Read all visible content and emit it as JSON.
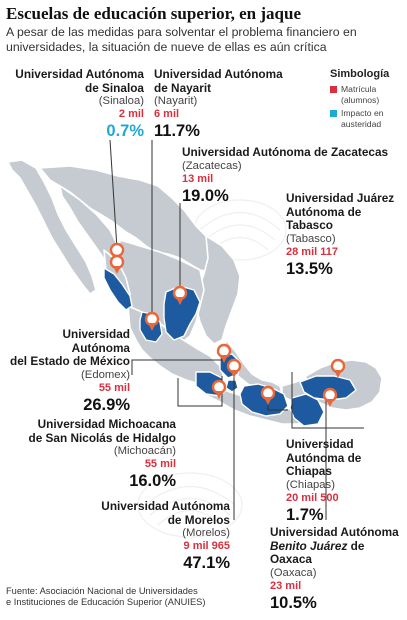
{
  "header": {
    "title": "Escuelas de educación superior, en jaque",
    "subtitle": "A pesar de las medidas para solventar el problema financiero en universidades, la situación de nueve de ellas es aún crítica"
  },
  "legend": {
    "title": "Simbología",
    "items": [
      {
        "label": "Matrícula (alumnos)",
        "color": "#d8303e"
      },
      {
        "label": "Impacto en austeridad",
        "color": "#1fa7d8"
      }
    ]
  },
  "universities": [
    {
      "id": "sinaloa",
      "name1": "Universidad Autónoma",
      "name2": "de Sinaloa",
      "state": "(Sinaloa)",
      "enrollment": "2 mil",
      "impact": "0.7%"
    },
    {
      "id": "nayarit",
      "name1": "Universidad Autónoma",
      "name2": "de Nayarit",
      "state": "(Nayarit)",
      "enrollment": "6 mil",
      "impact": "11.7%"
    },
    {
      "id": "zacatecas",
      "name1": "Universidad Autónoma de Zacatecas",
      "state": "(Zacatecas)",
      "enrollment": "13 mil",
      "impact": "19.0%"
    },
    {
      "id": "tabasco",
      "name1": "Universidad Juárez",
      "name2": "Autónoma de",
      "name3": "Tabasco",
      "state": "(Tabasco)",
      "enrollment": "28 mil 117",
      "impact": "13.5%"
    },
    {
      "id": "edomex",
      "name1": "Universidad Autónoma",
      "name2": "del Estado de México",
      "state": "(Edomex)",
      "enrollment": "55 mil",
      "impact": "26.9%"
    },
    {
      "id": "michoacan",
      "name1": "Universidad Michoacana",
      "name2": "de San Nicolás de Hidalgo",
      "state": "(Michoacán)",
      "enrollment": "55 mil",
      "impact": "16.0%"
    },
    {
      "id": "chiapas",
      "name1": "Universidad",
      "name2": "Autónoma de Chiapas",
      "state": "(Chiapas)",
      "enrollment": "20 mil 500",
      "impact": "1.7%"
    },
    {
      "id": "morelos",
      "name1": "Universidad Autónoma",
      "name2": "de Morelos",
      "state": "(Morelos)",
      "enrollment": "9 mil 965",
      "impact": "47.1%"
    },
    {
      "id": "oaxaca",
      "name1": "Universidad Autónoma",
      "name2": "Benito Juárez",
      "name2b": " de Oaxaca",
      "state": "(Oaxaca)",
      "enrollment": "23 mil",
      "impact": "10.5%"
    }
  ],
  "source": {
    "line1": "Fuente: Asociación Nacional de Universidades",
    "line2": "e Instituciones de Educación Superior (ANUIES)"
  },
  "colors": {
    "land": "#c6cad1",
    "highlight": "#1e5aa0",
    "pin": "#e9683a",
    "leader": "#333333"
  }
}
